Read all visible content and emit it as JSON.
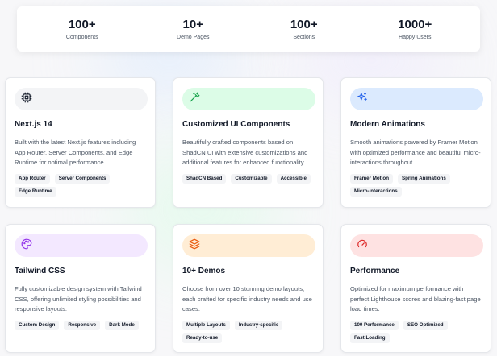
{
  "stats": [
    {
      "value": "100+",
      "label": "Components"
    },
    {
      "value": "10+",
      "label": "Demo Pages"
    },
    {
      "value": "100+",
      "label": "Sections"
    },
    {
      "value": "1000+",
      "label": "Happy Users"
    }
  ],
  "cards": [
    {
      "icon": "cpu-icon",
      "accent": "#f3f4f6",
      "icon_color": "#111827",
      "title": "Next.js 14",
      "desc": "Built with the latest Next.js features including App Router, Server Components, and Edge Runtime for optimal performance.",
      "tags": [
        "App Router",
        "Server Components",
        "Edge Runtime"
      ]
    },
    {
      "icon": "wand-icon",
      "accent": "#dcfce7",
      "icon_color": "#16a34a",
      "title": "Customized UI Components",
      "desc": "Beautifully crafted components based on ShadCN UI with extensive customizations and additional features for enhanced functionality.",
      "tags": [
        "ShadCN Based",
        "Customizable",
        "Accessible"
      ]
    },
    {
      "icon": "sparkles-icon",
      "accent": "#dbeafe",
      "icon_color": "#2563eb",
      "title": "Modern Animations",
      "desc": "Smooth animations powered by Framer Motion with optimized performance and beautiful micro-interactions throughout.",
      "tags": [
        "Framer Motion",
        "Spring Animations",
        "Micro-interactions"
      ]
    },
    {
      "icon": "palette-icon",
      "accent": "#f3e8ff",
      "icon_color": "#9333ea",
      "title": "Tailwind CSS",
      "desc": "Fully customizable design system with Tailwind CSS, offering unlimited styling possibilities and responsive layouts.",
      "tags": [
        "Custom Design",
        "Responsive",
        "Dark Mode"
      ]
    },
    {
      "icon": "layers-icon",
      "accent": "#ffedd5",
      "icon_color": "#ea580c",
      "title": "10+ Demos",
      "desc": "Choose from over 10 stunning demo layouts, each crafted for specific industry needs and use cases.",
      "tags": [
        "Multiple Layouts",
        "Industry-specific",
        "Ready-to-use"
      ]
    },
    {
      "icon": "gauge-icon",
      "accent": "#fee2e2",
      "icon_color": "#dc2626",
      "title": "Performance",
      "desc": "Optimized for maximum performance with perfect Lighthouse scores and blazing-fast page load times.",
      "tags": [
        "100 Performance",
        "SEO Optimized",
        "Fast Loading"
      ]
    }
  ]
}
